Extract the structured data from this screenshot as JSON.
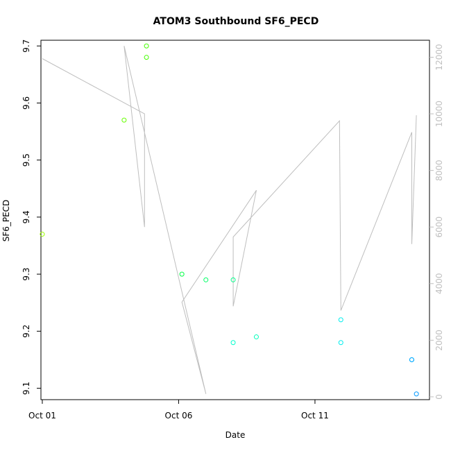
{
  "chart_data": {
    "type": "scatter",
    "title": "ATOM3 Southbound SF6_PECD",
    "xlabel": "Date",
    "ylabel": "SF6_PECD",
    "x_ticks": [
      {
        "day": 1,
        "label": "Oct 01"
      },
      {
        "day": 6,
        "label": "Oct 06"
      },
      {
        "day": 11,
        "label": "Oct 11"
      }
    ],
    "y_ticks": [
      9.1,
      9.2,
      9.3,
      9.4,
      9.5,
      9.6,
      9.7
    ],
    "y_right_ticks": [
      0,
      2000,
      4000,
      6000,
      8000,
      10000,
      12000
    ],
    "xlim": [
      0.95,
      15.2
    ],
    "ylim": [
      9.08,
      9.71
    ],
    "y_right_lim": [
      -100,
      12600
    ],
    "grid": false,
    "colors": {
      "line": "#bebebe",
      "right_axis": "#bfbfbf",
      "axis": "#000000"
    },
    "series": [
      {
        "points": [
          {
            "x": 1.0,
            "y": 9.37,
            "color": "#9aff00"
          },
          {
            "x": 4.0,
            "y": 9.57,
            "color": "#66ff00"
          },
          {
            "x": 4.82,
            "y": 9.7,
            "color": "#44ff00"
          },
          {
            "x": 4.82,
            "y": 9.68,
            "color": "#44ff00"
          },
          {
            "x": 6.12,
            "y": 9.3,
            "color": "#00ff44"
          },
          {
            "x": 7.0,
            "y": 9.29,
            "color": "#00ff66"
          },
          {
            "x": 8.0,
            "y": 9.29,
            "color": "#00ff88"
          },
          {
            "x": 8.0,
            "y": 9.18,
            "color": "#00ffcc"
          },
          {
            "x": 8.85,
            "y": 9.19,
            "color": "#00ffbb"
          },
          {
            "x": 11.95,
            "y": 9.22,
            "color": "#00eeee"
          },
          {
            "x": 11.95,
            "y": 9.18,
            "color": "#00eeee"
          },
          {
            "x": 14.55,
            "y": 9.15,
            "color": "#00aaff"
          },
          {
            "x": 14.55,
            "y": 9.15,
            "color": "#00aaff"
          },
          {
            "x": 14.72,
            "y": 9.09,
            "color": "#0099ff"
          }
        ]
      },
      {
        "axis": "right",
        "line": [
          {
            "x": 1.0,
            "y": 11950
          },
          {
            "x": 4.75,
            "y": 10000
          },
          {
            "x": 4.75,
            "y": 6000
          },
          {
            "x": 4.0,
            "y": 12400
          },
          {
            "x": 7.0,
            "y": 100
          },
          {
            "x": 6.12,
            "y": 3350
          },
          {
            "x": 8.85,
            "y": 7300
          },
          {
            "x": 8.0,
            "y": 3200
          },
          {
            "x": 8.0,
            "y": 5650
          },
          {
            "x": 11.9,
            "y": 9750
          },
          {
            "x": 11.95,
            "y": 3050
          },
          {
            "x": 14.55,
            "y": 9350
          },
          {
            "x": 14.55,
            "y": 5400
          },
          {
            "x": 14.72,
            "y": 9950
          }
        ]
      }
    ]
  }
}
